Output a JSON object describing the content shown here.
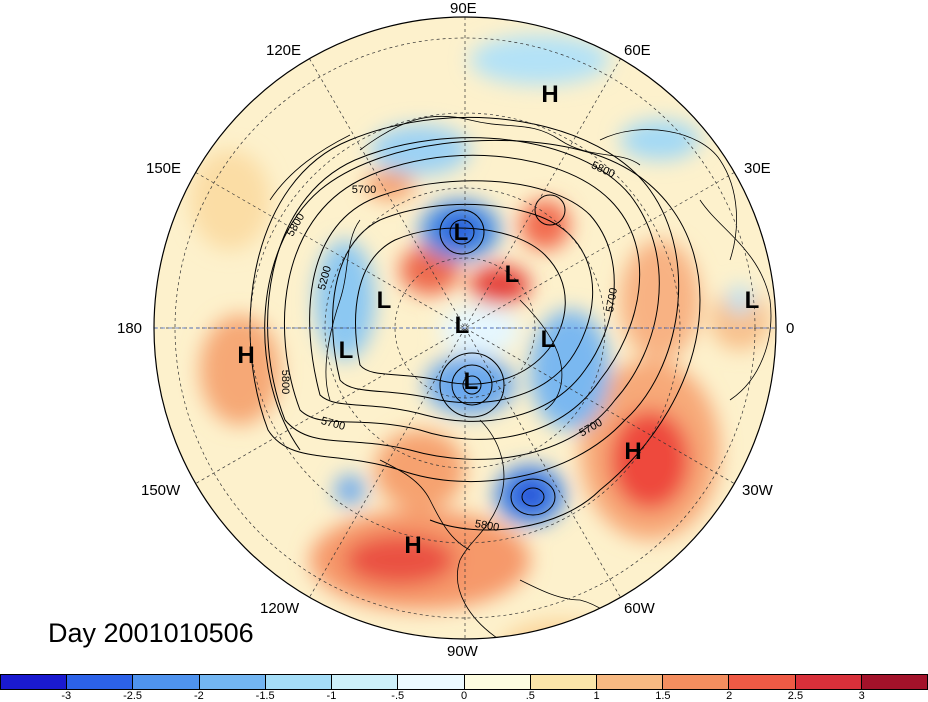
{
  "map": {
    "projection": "polar-stereographic-north",
    "longitude_labels": [
      {
        "id": "lon-90e",
        "text": "90E"
      },
      {
        "id": "lon-120e",
        "text": "120E"
      },
      {
        "id": "lon-60e",
        "text": "60E"
      },
      {
        "id": "lon-150e",
        "text": "150E"
      },
      {
        "id": "lon-30e",
        "text": "30E"
      },
      {
        "id": "lon-180",
        "text": "180"
      },
      {
        "id": "lon-0",
        "text": "0"
      },
      {
        "id": "lon-150w",
        "text": "150W"
      },
      {
        "id": "lon-30w",
        "text": "30W"
      },
      {
        "id": "lon-120w",
        "text": "120W"
      },
      {
        "id": "lon-60w",
        "text": "60W"
      },
      {
        "id": "lon-90w",
        "text": "90W"
      }
    ],
    "pressure_systems": [
      {
        "id": "h-siberia",
        "text": "H"
      },
      {
        "id": "l-barents",
        "text": "L"
      },
      {
        "id": "l-arctic",
        "text": "L"
      },
      {
        "id": "l-europe",
        "text": "L"
      },
      {
        "id": "l-pacific-1",
        "text": "L"
      },
      {
        "id": "l-pacific-2",
        "text": "L"
      },
      {
        "id": "l-pole",
        "text": "L"
      },
      {
        "id": "l-greenland",
        "text": "L"
      },
      {
        "id": "h-pacific",
        "text": "H"
      },
      {
        "id": "l-hudson",
        "text": "L"
      },
      {
        "id": "h-atlantic",
        "text": "H"
      },
      {
        "id": "h-mexico",
        "text": "H"
      }
    ],
    "contour_labels": [
      {
        "id": "c5800-ne",
        "text": "5800"
      },
      {
        "id": "c5700-n",
        "text": "5700"
      },
      {
        "id": "c5800-nw",
        "text": "5800"
      },
      {
        "id": "c5200-w",
        "text": "5200"
      },
      {
        "id": "c5800-w",
        "text": "5800"
      },
      {
        "id": "c5700-sw",
        "text": "5700"
      },
      {
        "id": "c5700-se",
        "text": "5700"
      },
      {
        "id": "c5800-s",
        "text": "5800"
      },
      {
        "id": "c5700-e",
        "text": "5700"
      }
    ],
    "title": "Day 2001010506",
    "colors": {
      "cold_strong": "#1a3fd6",
      "cold_mid": "#4d90e8",
      "cold_light": "#a8dcf5",
      "warm_light": "#fbe6b0",
      "warm_mid": "#f6a66c",
      "warm_strong": "#e8413a"
    }
  },
  "colorbar": {
    "colors": [
      "#1a1ad0",
      "#2c62e8",
      "#4f93ee",
      "#73b6f2",
      "#a5ddf7",
      "#cdf0fa",
      "#ecfaff",
      "#fdfce0",
      "#fbe5a9",
      "#f7b982",
      "#f48e5f",
      "#ef5a45",
      "#d8303a",
      "#a3122a"
    ],
    "ticks": [
      "-3",
      "-2.5",
      "-2",
      "-1.5",
      "-1",
      "-.5",
      "0",
      ".5",
      "1",
      "1.5",
      "2",
      "2.5",
      "3"
    ]
  }
}
